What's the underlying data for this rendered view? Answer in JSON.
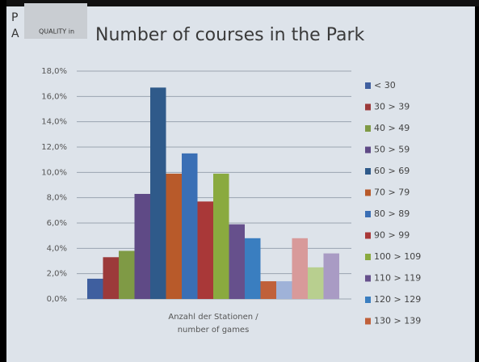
{
  "chart_data": {
    "type": "bar",
    "title": "Number of courses in the Park",
    "logo_text": "QUALITY in",
    "logo_letters": [
      "P",
      "A"
    ],
    "xlabel_lines": [
      "Anzahl der Stationen /",
      "number of games"
    ],
    "ylim": [
      0,
      18
    ],
    "yticks": [
      {
        "value": 0,
        "label": "0,0%"
      },
      {
        "value": 2,
        "label": "2,0%"
      },
      {
        "value": 4,
        "label": "4,0%"
      },
      {
        "value": 6,
        "label": "6,0%"
      },
      {
        "value": 8,
        "label": "8,0%"
      },
      {
        "value": 10,
        "label": "10,0%"
      },
      {
        "value": 12,
        "label": "12,0%"
      },
      {
        "value": 14,
        "label": "14,0%"
      },
      {
        "value": 16,
        "label": "16,0%"
      },
      {
        "value": 18,
        "label": "18,0%"
      }
    ],
    "grid": true,
    "legend": "right",
    "series": [
      {
        "name": "< 30",
        "color": "#3f5f9f",
        "values": [
          1.6
        ]
      },
      {
        "name": "30 > 39",
        "color": "#9c3a3a",
        "values": [
          3.3
        ]
      },
      {
        "name": "40 > 49",
        "color": "#7f9a45",
        "values": [
          3.8
        ]
      },
      {
        "name": "50 > 59",
        "color": "#5f4a86",
        "values": [
          8.3
        ]
      },
      {
        "name": "60 > 69",
        "color": "#2f5a8a",
        "values": [
          16.7
        ]
      },
      {
        "name": "70 > 79",
        "color": "#b85a2a",
        "values": [
          9.9
        ]
      },
      {
        "name": "80 > 89",
        "color": "#3a6fb5",
        "values": [
          11.5
        ]
      },
      {
        "name": "90 > 99",
        "color": "#a93838",
        "values": [
          7.7
        ]
      },
      {
        "name": "100 > 109",
        "color": "#8aaa3f",
        "values": [
          9.9
        ]
      },
      {
        "name": "110 > 119",
        "color": "#66508c",
        "values": [
          5.9
        ]
      },
      {
        "name": "120 > 129",
        "color": "#3a7ec0",
        "values": [
          4.8
        ]
      },
      {
        "name": "130 > 139",
        "color": "#c0603a",
        "values": [
          1.4
        ]
      },
      {
        "name": null,
        "color": "#9fb2d8",
        "values": [
          1.4
        ]
      },
      {
        "name": null,
        "color": "#d89a9a",
        "values": [
          4.8
        ]
      },
      {
        "name": null,
        "color": "#b8cf8f",
        "values": [
          2.5
        ]
      },
      {
        "name": null,
        "color": "#a99bc4",
        "values": [
          3.6
        ]
      }
    ]
  }
}
